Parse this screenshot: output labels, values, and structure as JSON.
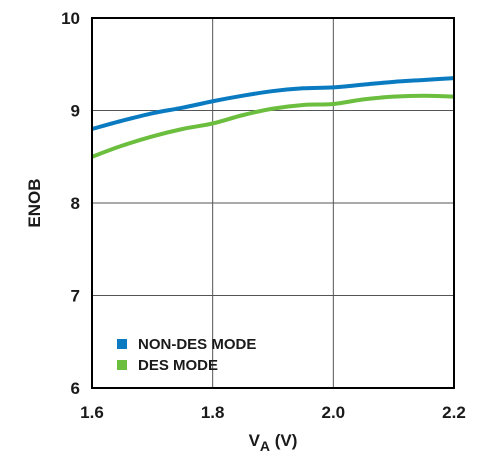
{
  "chart_data": {
    "type": "line",
    "title": "",
    "xlabel": "V",
    "xlabel_sub": "A",
    "xlabel_unit": " (V)",
    "ylabel": "ENOB",
    "xlim": [
      1.6,
      2.2
    ],
    "ylim": [
      6,
      10
    ],
    "x_ticks": [
      1.6,
      1.8,
      2.0,
      2.2
    ],
    "x_tick_labels": [
      "1.6",
      "1.8",
      "2.0",
      "2.2"
    ],
    "y_ticks": [
      6,
      7,
      8,
      9,
      10
    ],
    "y_tick_labels": [
      "6",
      "7",
      "8",
      "9",
      "10"
    ],
    "grid": true,
    "legend_position": "bottom-left",
    "series": [
      {
        "name": "NON-DES MODE",
        "color": "#0a7bc1",
        "x": [
          1.6,
          1.65,
          1.7,
          1.75,
          1.8,
          1.85,
          1.9,
          1.95,
          2.0,
          2.05,
          2.1,
          2.15,
          2.2
        ],
        "y": [
          8.8,
          8.89,
          8.97,
          9.03,
          9.1,
          9.16,
          9.21,
          9.24,
          9.25,
          9.28,
          9.31,
          9.33,
          9.35
        ]
      },
      {
        "name": "DES MODE",
        "color": "#6cbe3e",
        "x": [
          1.6,
          1.65,
          1.7,
          1.75,
          1.8,
          1.85,
          1.9,
          1.95,
          2.0,
          2.05,
          2.1,
          2.15,
          2.2
        ],
        "y": [
          8.5,
          8.62,
          8.72,
          8.8,
          8.86,
          8.95,
          9.02,
          9.06,
          9.07,
          9.12,
          9.15,
          9.16,
          9.15
        ]
      }
    ]
  }
}
